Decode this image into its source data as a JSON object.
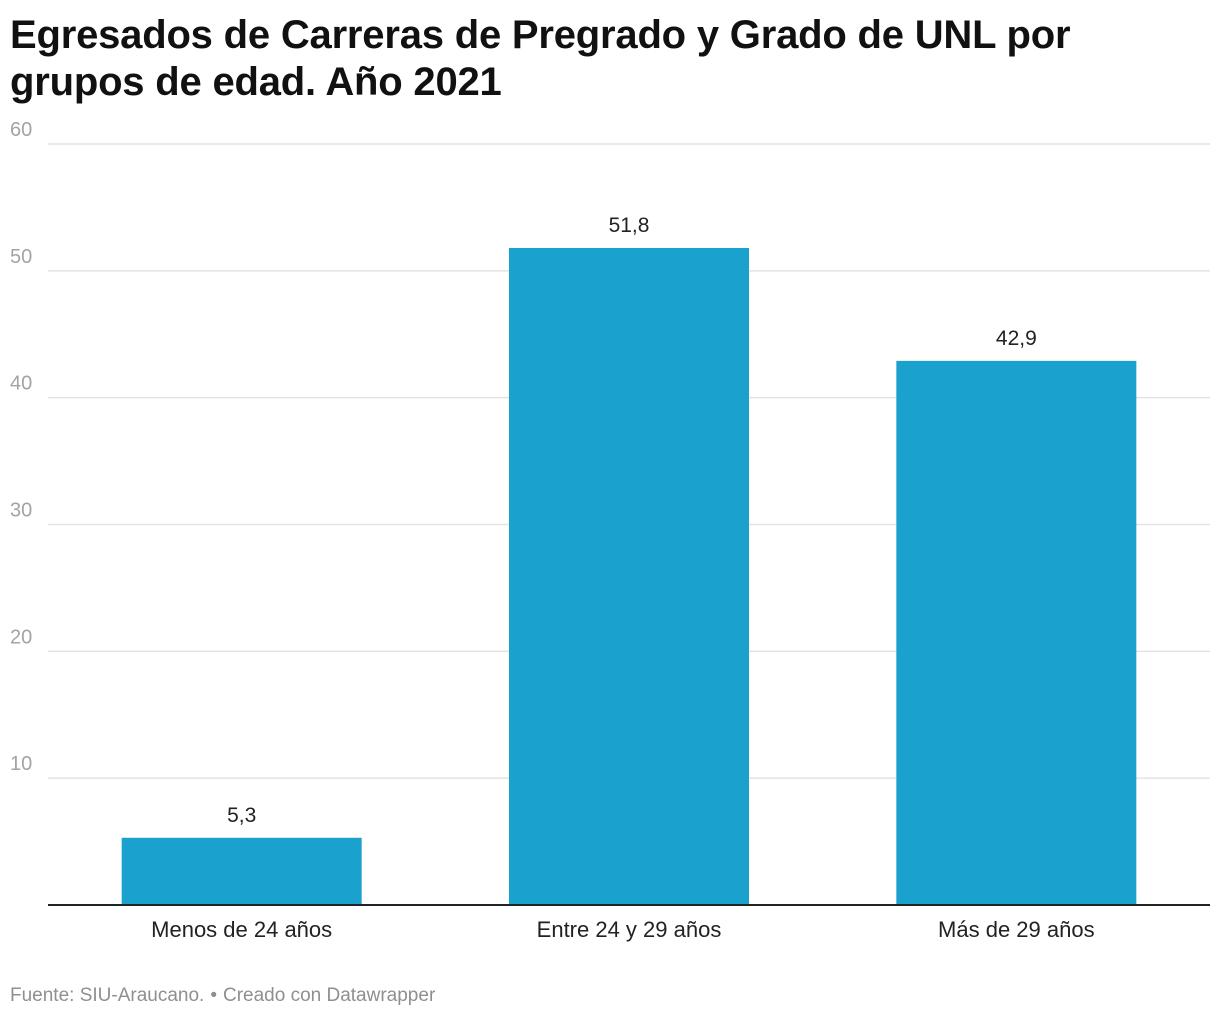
{
  "chart_data": {
    "type": "bar",
    "title": "Egresados de Carreras de Pregrado y Grado de UNL por grupos de edad. Año 2021",
    "categories": [
      "Menos de 24 años",
      "Entre 24 y 29 años",
      "Más de 29 años"
    ],
    "values": [
      5.3,
      51.8,
      42.9
    ],
    "value_labels": [
      "5,3",
      "51,8",
      "42,9"
    ],
    "xlabel": "",
    "ylabel": "",
    "ylim": [
      0,
      60
    ],
    "yticks": [
      10,
      20,
      30,
      40,
      50,
      60
    ],
    "grid": true,
    "legend": "none",
    "bar_color": "#1aa1cd",
    "grid_color": "#e3e3e3",
    "axis_color": "#222222"
  },
  "footer": {
    "source": "Fuente: SIU-Araucano.",
    "separator": "•",
    "credit": "Creado con Datawrapper"
  }
}
